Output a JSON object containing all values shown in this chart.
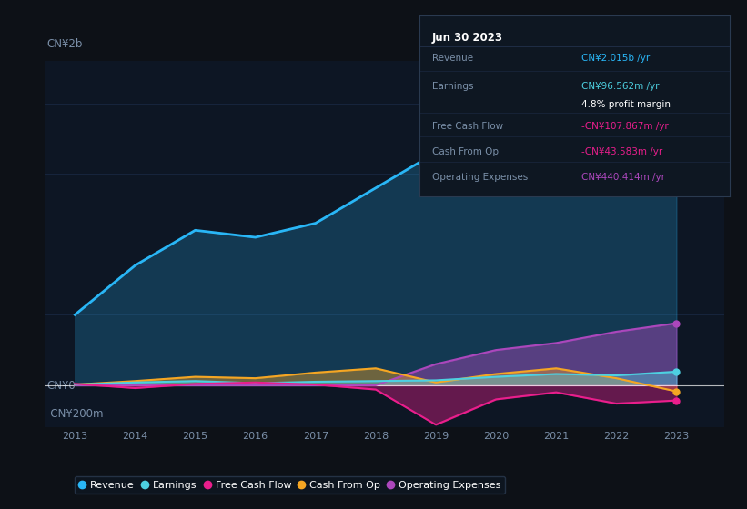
{
  "background_color": "#0d1117",
  "plot_bg_color": "#0d1624",
  "ylabel_top": "CN¥2b",
  "ylabel_zero": "CN¥0",
  "ylabel_neg": "-CN¥200m",
  "years": [
    2013,
    2014,
    2015,
    2016,
    2017,
    2018,
    2019,
    2020,
    2021,
    2022,
    2023
  ],
  "revenue": [
    500,
    850,
    1100,
    1050,
    1150,
    1400,
    1650,
    2100,
    1900,
    1600,
    2015
  ],
  "earnings": [
    5,
    20,
    30,
    15,
    25,
    30,
    35,
    60,
    80,
    70,
    96.562
  ],
  "free_cash_flow": [
    10,
    -20,
    10,
    20,
    5,
    -30,
    -280,
    -100,
    -50,
    -130,
    -107.867
  ],
  "cash_from_op": [
    5,
    30,
    60,
    50,
    90,
    120,
    20,
    80,
    120,
    50,
    -43.583
  ],
  "operating_expenses": [
    0,
    0,
    0,
    0,
    0,
    0,
    150,
    250,
    300,
    380,
    440.414
  ],
  "revenue_color": "#29b6f6",
  "earnings_color": "#4dd0e1",
  "free_cash_flow_color": "#e91e8c",
  "cash_from_op_color": "#f5a623",
  "operating_expenses_color": "#ab47bc",
  "info_box": {
    "date": "Jun 30 2023",
    "revenue_label": "Revenue",
    "revenue_value": "CN¥2.015b /yr",
    "earnings_label": "Earnings",
    "earnings_value": "CN¥96.562m /yr",
    "profit_margin": "4.8% profit margin",
    "fcf_label": "Free Cash Flow",
    "fcf_value": "-CN¥107.867m /yr",
    "cashop_label": "Cash From Op",
    "cashop_value": "-CN¥43.583m /yr",
    "opex_label": "Operating Expenses",
    "opex_value": "CN¥440.414m /yr"
  }
}
